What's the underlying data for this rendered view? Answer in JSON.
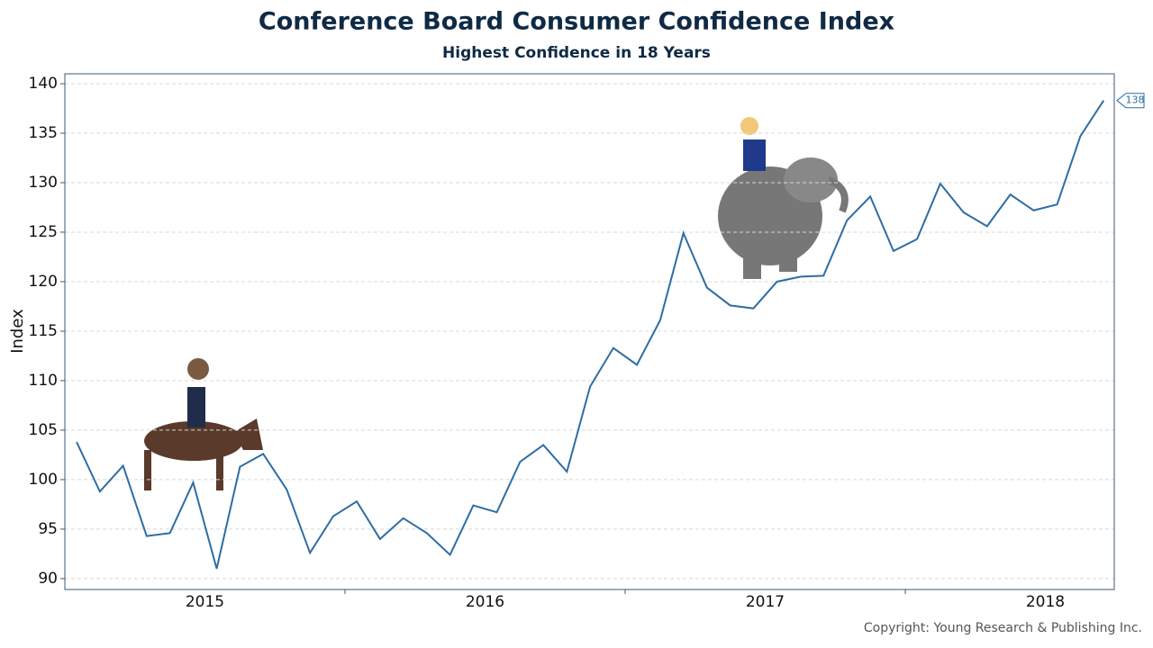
{
  "chart_data": {
    "type": "line",
    "title": "Conference Board Consumer Confidence Index",
    "subtitle": "Highest Confidence in 18 Years",
    "y_label": "Index",
    "copyright": "Copyright: Young Research & Publishing Inc.",
    "color": "#2e6da4",
    "x": [
      2015.042,
      2015.125,
      2015.208,
      2015.292,
      2015.375,
      2015.458,
      2015.542,
      2015.625,
      2015.708,
      2015.792,
      2015.875,
      2015.958,
      2016.042,
      2016.125,
      2016.208,
      2016.292,
      2016.375,
      2016.458,
      2016.542,
      2016.625,
      2016.708,
      2016.792,
      2016.875,
      2016.958,
      2017.042,
      2017.125,
      2017.208,
      2017.292,
      2017.375,
      2017.458,
      2017.542,
      2017.625,
      2017.708,
      2017.792,
      2017.875,
      2017.958,
      2018.042,
      2018.125,
      2018.208,
      2018.292,
      2018.375,
      2018.458,
      2018.542,
      2018.625,
      2018.708
    ],
    "values": [
      103.8,
      98.8,
      101.4,
      94.3,
      94.6,
      99.7,
      91.0,
      101.3,
      102.6,
      99.0,
      92.6,
      96.3,
      97.8,
      94.0,
      96.1,
      94.6,
      92.4,
      97.4,
      96.7,
      101.8,
      103.5,
      100.8,
      109.4,
      113.3,
      111.6,
      116.1,
      124.9,
      119.4,
      117.6,
      117.3,
      120.0,
      120.5,
      120.6,
      126.2,
      128.6,
      123.1,
      124.3,
      129.9,
      127.0,
      125.6,
      128.8,
      127.2,
      127.8,
      134.7,
      138.3
    ],
    "end_label": "138",
    "xlim": [
      2015,
      2018.746
    ],
    "xticks": [
      {
        "value": 2015.5,
        "label": "2015"
      },
      {
        "value": 2016.5,
        "label": "2016"
      },
      {
        "value": 2017.5,
        "label": "2017"
      },
      {
        "value": 2018.5,
        "label": "2018"
      }
    ],
    "xtick_marks": [
      2016,
      2017,
      2018
    ],
    "ylim": [
      88.9,
      141
    ],
    "yticks": [
      90,
      95,
      100,
      105,
      110,
      115,
      120,
      125,
      130,
      135,
      140
    ],
    "grid": true
  }
}
